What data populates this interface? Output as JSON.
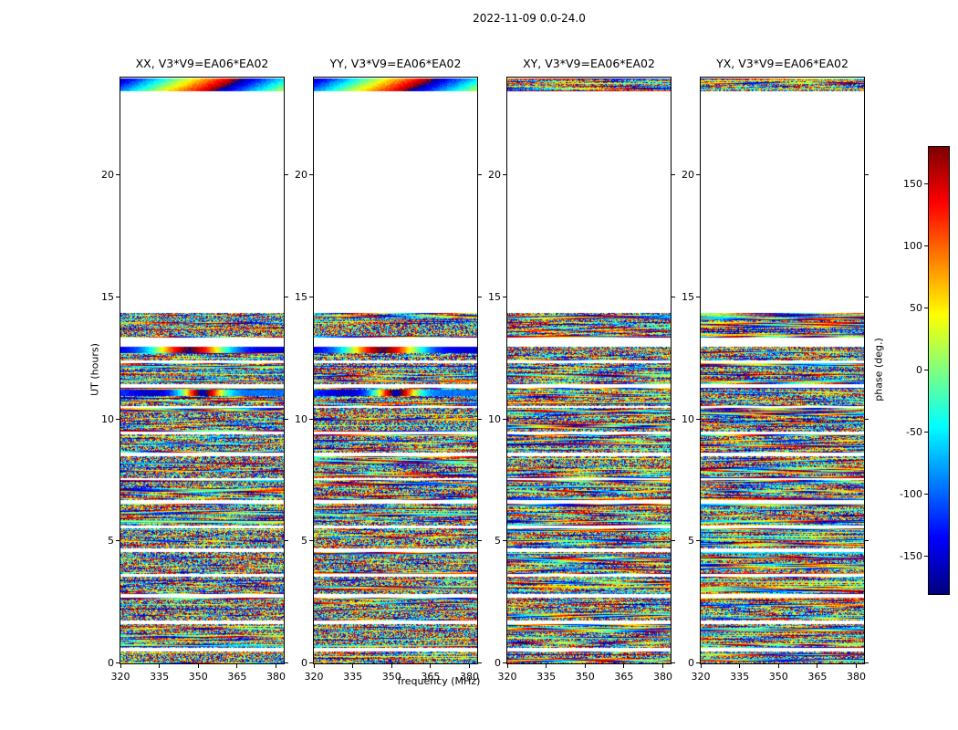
{
  "figure_title": "2022-11-09 0.0-24.0",
  "chart_data": {
    "type": "heatmap",
    "layout": "four phase-waterfall panels (time vs frequency) sharing axes, jet colormap, colorbar at right",
    "panels": [
      {
        "pol": "XX",
        "title": "XX, V3*V9=EA06*EA02"
      },
      {
        "pol": "YY",
        "title": "YY, V3*V9=EA06*EA02"
      },
      {
        "pol": "XY",
        "title": "XY, V3*V9=EA06*EA02"
      },
      {
        "pol": "YX",
        "title": "YX, V3*V9=EA06*EA02"
      }
    ],
    "xlabel": "frequency (MHz)",
    "ylabel": "UT (hours)",
    "xlim": [
      320,
      383
    ],
    "ylim": [
      0,
      24
    ],
    "x_ticks": {
      "values": [
        320,
        335,
        350,
        365,
        380
      ],
      "labels": [
        "320",
        "335",
        "350",
        "365",
        "380"
      ]
    },
    "y_ticks": {
      "values": [
        0,
        5,
        10,
        15,
        20
      ],
      "labels": [
        "0",
        "5",
        "10",
        "15",
        "20"
      ]
    },
    "colorbar": {
      "label": "phase (deg.)",
      "colormap": "jet",
      "vmin": -180,
      "vmax": 180,
      "tick_values": [
        150,
        100,
        50,
        0,
        -50,
        -100,
        -150
      ],
      "tick_labels": [
        "150",
        "100",
        "50",
        "0",
        "-50",
        "-100",
        "-150"
      ]
    },
    "scan_intervals_ut_hours": [
      [
        0.0,
        0.5
      ],
      [
        0.65,
        1.6
      ],
      [
        1.75,
        2.7
      ],
      [
        2.85,
        3.55
      ],
      [
        3.65,
        4.55
      ],
      [
        4.7,
        5.55
      ],
      [
        5.65,
        6.55
      ],
      [
        6.7,
        7.5
      ],
      [
        7.6,
        8.5
      ],
      [
        8.65,
        9.4
      ],
      [
        9.5,
        10.45
      ],
      [
        10.55,
        11.3
      ],
      [
        11.45,
        12.3
      ],
      [
        12.4,
        12.96
      ],
      [
        13.35,
        14.35
      ],
      [
        23.45,
        23.97
      ]
    ]
  }
}
